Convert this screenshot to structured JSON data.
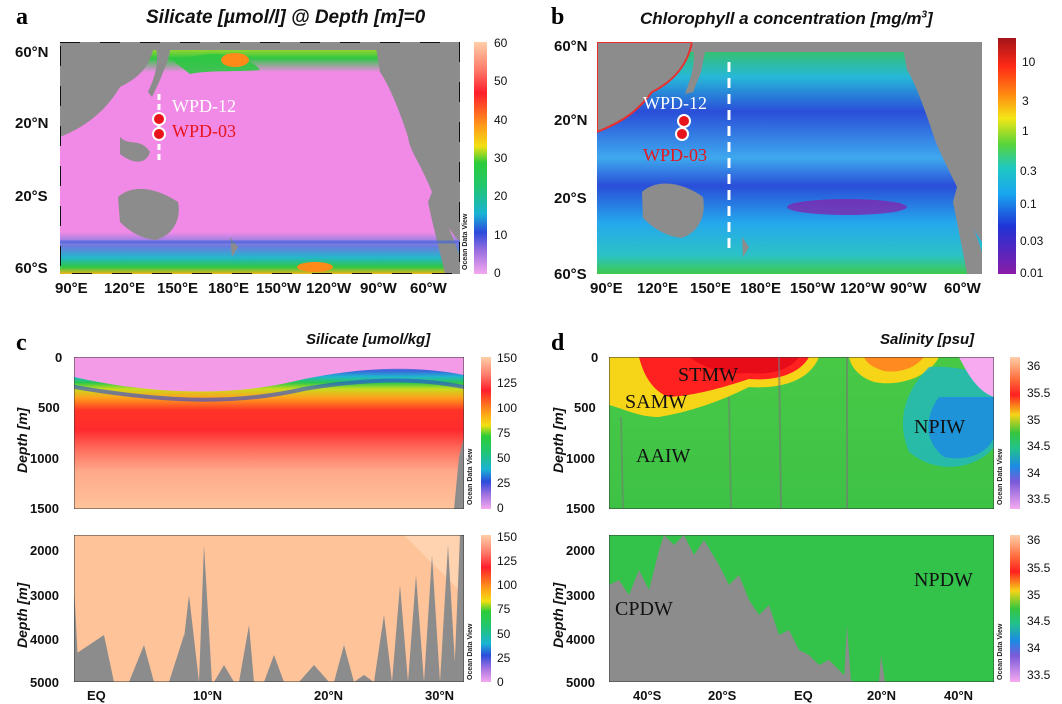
{
  "panel_a": {
    "letter": "a",
    "title": "Silicate [µmol/l] @ Depth [m]=0",
    "lat_ticks": [
      "60°N",
      "20°N",
      "20°S",
      "60°S"
    ],
    "lon_ticks": [
      "90°E",
      "120°E",
      "150°E",
      "180°E",
      "150°W",
      "120°W",
      "90°W",
      "60°W"
    ],
    "colorbar_ticks": [
      "60",
      "50",
      "40",
      "30",
      "20",
      "10",
      "0"
    ],
    "site_upper": "WPD-12",
    "site_lower": "WPD-03",
    "watermark": "Ocean Data View"
  },
  "panel_b": {
    "letter": "b",
    "title_prefix": "Chlorophyll a concentration [mg/m",
    "title_sup": "3",
    "title_suffix": "]",
    "lat_ticks": [
      "60°N",
      "20°N",
      "20°S",
      "60°S"
    ],
    "lon_ticks": [
      "90°E",
      "120°E",
      "150°E",
      "180°E",
      "150°W",
      "120°W",
      "90°W",
      "60°W"
    ],
    "colorbar_ticks": [
      "10",
      "3",
      "1",
      "0.3",
      "0.1",
      "0.03",
      "0.01"
    ],
    "site_upper": "WPD-12",
    "site_lower": "WPD-03"
  },
  "panel_c": {
    "letter": "c",
    "title": "Silicate [umol/kg]",
    "ylabel": "Depth [m]",
    "upper_depth_ticks": [
      "0",
      "500",
      "1000",
      "1500"
    ],
    "lower_depth_ticks": [
      "2000",
      "3000",
      "4000",
      "5000"
    ],
    "x_ticks": [
      "EQ",
      "10°N",
      "20°N",
      "30°N"
    ],
    "colorbar_ticks": [
      "150",
      "125",
      "100",
      "75",
      "50",
      "25",
      "0"
    ],
    "watermark": "Ocean Data View"
  },
  "panel_d": {
    "letter": "d",
    "title": "Salinity [psu]",
    "ylabel": "Depth [m]",
    "upper_depth_ticks": [
      "0",
      "500",
      "1000",
      "1500"
    ],
    "lower_depth_ticks": [
      "2000",
      "3000",
      "4000",
      "5000"
    ],
    "x_ticks": [
      "40°S",
      "20°S",
      "EQ",
      "20°N",
      "40°N"
    ],
    "colorbar_ticks": [
      "36",
      "35.5",
      "35",
      "34.5",
      "34",
      "33.5"
    ],
    "water_masses": {
      "stmw": "STMW",
      "samw": "SAMW",
      "aaiw": "AAIW",
      "npiw": "NPIW",
      "npdw": "NPDW",
      "cpdw": "CPDW"
    },
    "watermark": "Ocean Data View"
  },
  "colors": {
    "land": "#8c8c8c",
    "pink": "#f08ae6",
    "site_upper": "#ffffff",
    "site_lower": "#e8141c",
    "deep_silicate": "#ffc39a",
    "deep_salinity": "#33c24a"
  }
}
